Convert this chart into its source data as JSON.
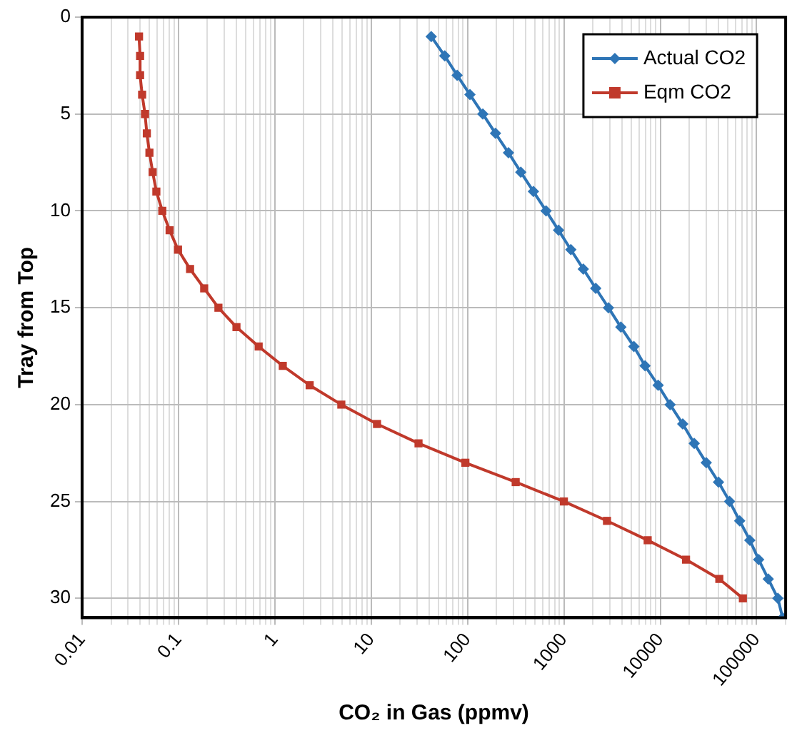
{
  "chart_data": {
    "type": "line",
    "xlabel": "CO₂ in Gas (ppmv)",
    "ylabel": "Tray from Top",
    "log": "x",
    "grid": true,
    "legend": "top right",
    "line_style": "solid",
    "xlim": [
      0.01,
      200000
    ],
    "xticks": [
      0.01,
      0.1,
      1,
      10,
      100,
      1000,
      10000,
      100000
    ],
    "ylim": [
      31,
      0
    ],
    "yticks": [
      0,
      5,
      10,
      15,
      20,
      25,
      30
    ],
    "series": [
      {
        "name": "Actual CO2",
        "color": "#2e75b6",
        "marker": "diamond",
        "x": [
          42,
          58,
          78,
          106,
          144,
          195,
          266,
          357,
          483,
          653,
          880,
          1180,
          1590,
          2140,
          2900,
          3900,
          5320,
          6950,
          9500,
          12650,
          17100,
          22500,
          30000,
          40200,
          52400,
          66700,
          85000,
          105000,
          132000,
          166000,
          186000
        ],
        "values": [
          1,
          2,
          3,
          4,
          5,
          6,
          7,
          8,
          9,
          10,
          11,
          12,
          13,
          14,
          15,
          16,
          17,
          18,
          19,
          20,
          21,
          22,
          23,
          24,
          25,
          26,
          27,
          28,
          29,
          30,
          31
        ]
      },
      {
        "name": "Eqm CO2",
        "color": "#c0392b",
        "marker": "square",
        "x": [
          0.039,
          0.04,
          0.04,
          0.042,
          0.045,
          0.047,
          0.05,
          0.054,
          0.059,
          0.068,
          0.081,
          0.099,
          0.132,
          0.185,
          0.26,
          0.4,
          0.68,
          1.21,
          2.3,
          4.9,
          11.5,
          31,
          95,
          316,
          1000,
          2800,
          7400,
          18500,
          41000,
          72000
        ],
        "values": [
          1,
          2,
          3,
          4,
          5,
          6,
          7,
          8,
          9,
          10,
          11,
          12,
          13,
          14,
          15,
          16,
          17,
          18,
          19,
          20,
          21,
          22,
          23,
          24,
          25,
          26,
          27,
          28,
          29,
          30
        ]
      }
    ]
  }
}
